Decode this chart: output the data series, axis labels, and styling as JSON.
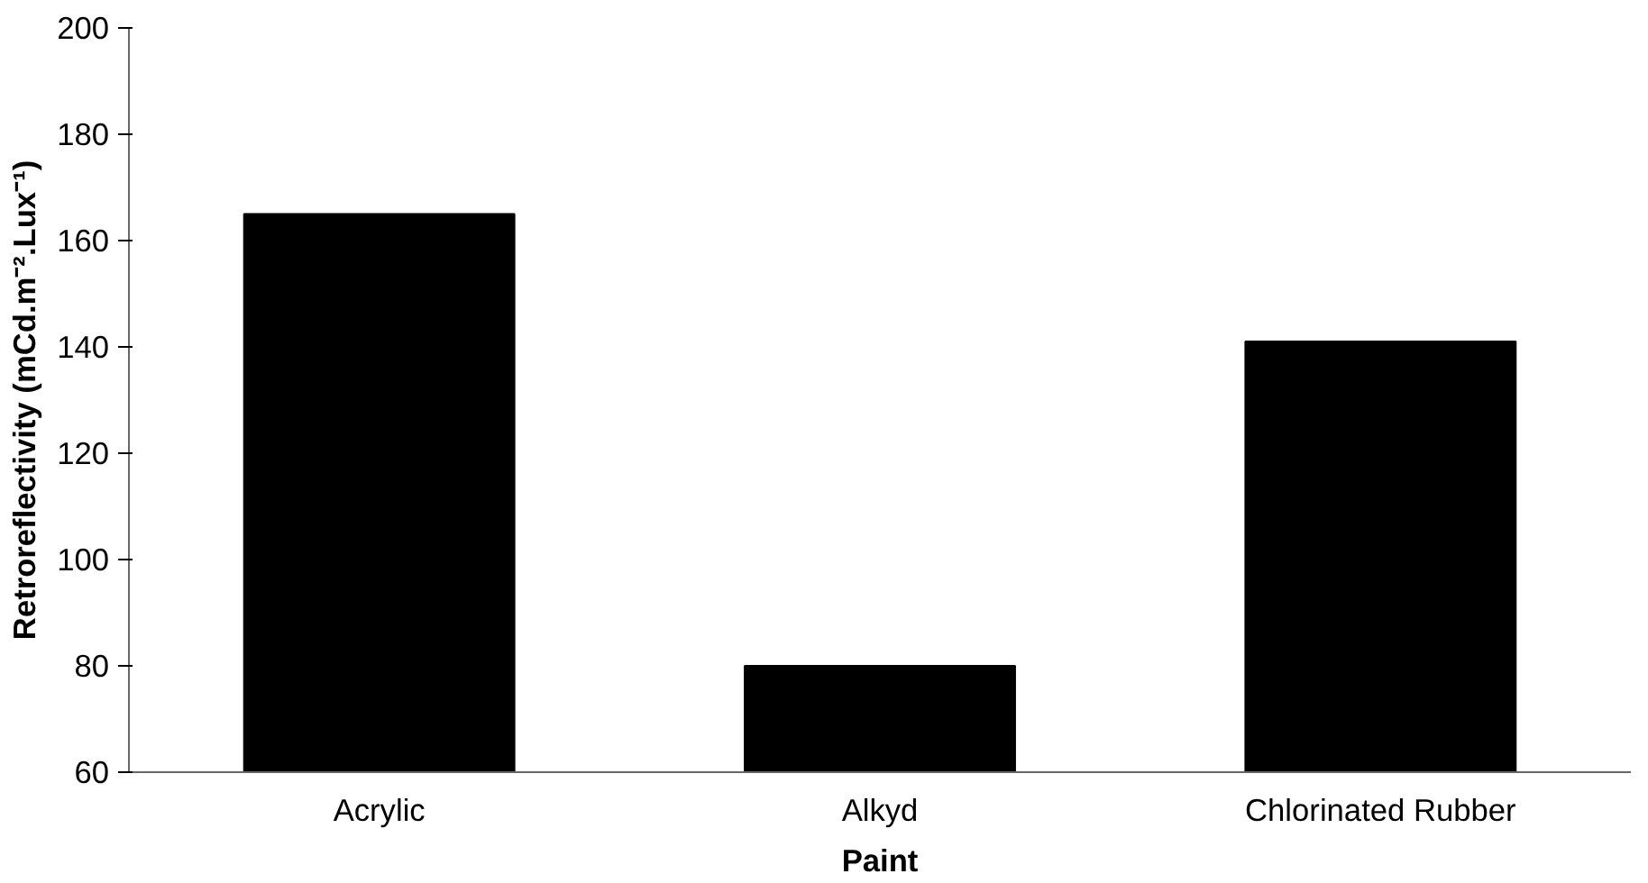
{
  "chart_data": {
    "type": "bar",
    "xlabel": "Paint",
    "ylabel": "Retroreflectivity (mCd.m⁻².Lux⁻¹)",
    "categories": [
      "Acrylic",
      "Alkyd",
      "Chlorinated Rubber"
    ],
    "values": [
      165,
      80,
      141
    ],
    "color": "#000000",
    "ylim": [
      60,
      200
    ],
    "yticks": [
      60,
      80,
      100,
      120,
      140,
      160,
      180,
      200
    ],
    "grid": false
  }
}
